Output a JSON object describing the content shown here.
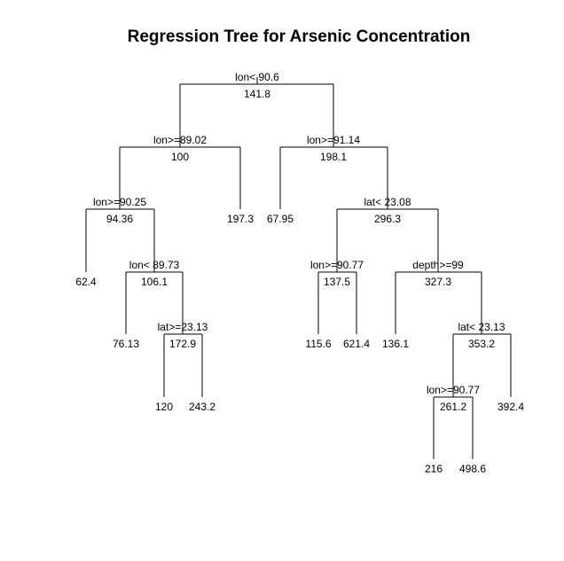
{
  "title": "Regression Tree for Arsenic Concentration",
  "nodes": {
    "root": {
      "split": "lon< 90.6",
      "value": "141.8"
    },
    "n2": {
      "split": "lon>=89.02",
      "value": "100"
    },
    "n3": {
      "split": "lon>=91.14",
      "value": "198.1"
    },
    "n4": {
      "split": "lon>=90.25",
      "value": "94.36"
    },
    "n5": {
      "value": "197.3"
    },
    "n6": {
      "value": "67.95"
    },
    "n7": {
      "split": "lat< 23.08",
      "value": "296.3"
    },
    "n8": {
      "value": "62.4"
    },
    "n9": {
      "split": "lon< 89.73",
      "value": "106.1"
    },
    "n14": {
      "split": "lon>=90.77",
      "value": "137.5"
    },
    "n15": {
      "split": "depth>=99",
      "value": "327.3"
    },
    "n18": {
      "value": "76.13"
    },
    "n19": {
      "split": "lat>=23.13",
      "value": "172.9"
    },
    "n28": {
      "value": "115.6"
    },
    "n29": {
      "value": "621.4"
    },
    "n30": {
      "value": "136.1"
    },
    "n31": {
      "split": "lat< 23.13",
      "value": "353.2"
    },
    "n38": {
      "value": "120"
    },
    "n39": {
      "value": "243.2"
    },
    "n62": {
      "split": "lon>=90.77",
      "value": "261.2"
    },
    "n63": {
      "value": "392.4"
    },
    "n124": {
      "value": "216"
    },
    "n125": {
      "value": "498.6"
    }
  }
}
